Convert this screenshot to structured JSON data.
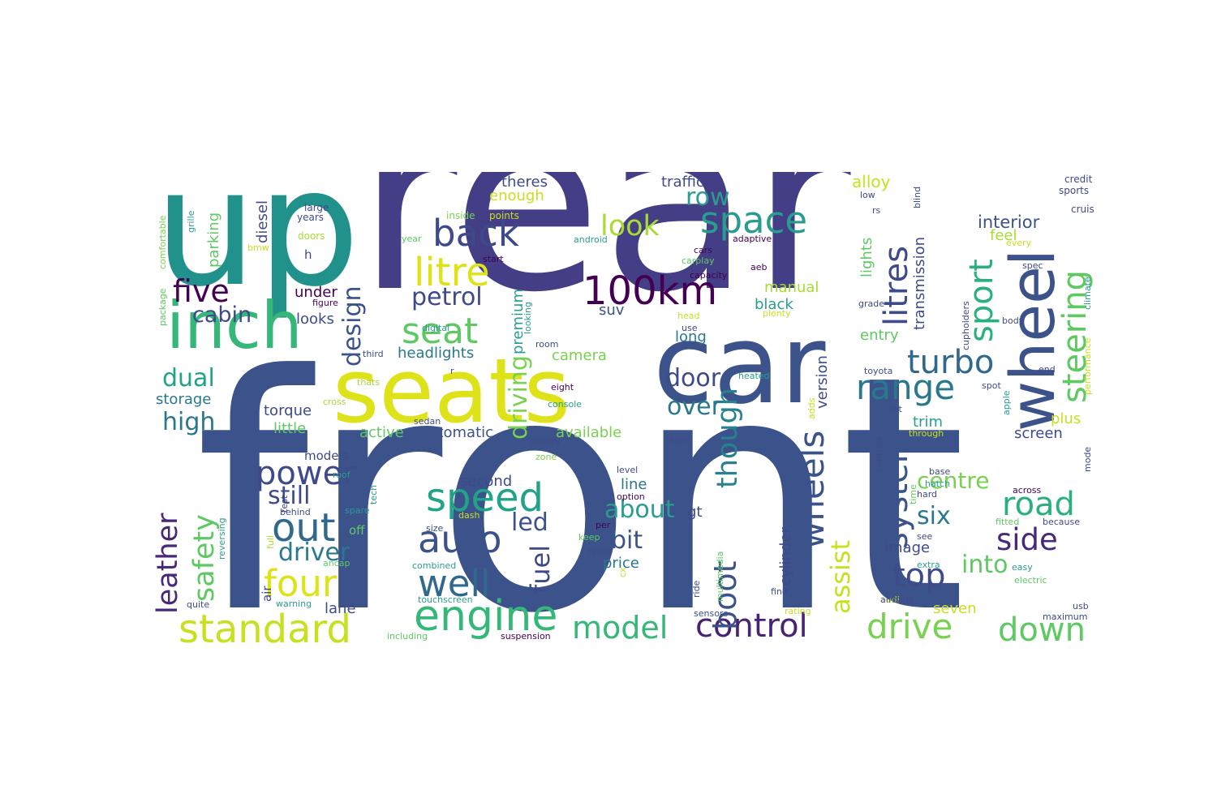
{
  "words": [
    {
      "text": "front",
      "color": "#3b528b"
    },
    {
      "text": "rear",
      "color": "#433e85"
    },
    {
      "text": "up",
      "color": "#21918c"
    },
    {
      "text": "car",
      "color": "#3b528b"
    },
    {
      "text": "seats",
      "color": "#dde318"
    },
    {
      "text": "inch",
      "color": "#35b779"
    },
    {
      "text": "wheel",
      "color": "#3b528b"
    },
    {
      "text": "100km",
      "color": "#440154"
    },
    {
      "text": "engine",
      "color": "#35b779"
    },
    {
      "text": "control",
      "color": "#482374"
    },
    {
      "text": "drive",
      "color": "#7ad151"
    },
    {
      "text": "standard",
      "color": "#c8e020"
    },
    {
      "text": "space",
      "color": "#2a9d8f"
    },
    {
      "text": "back",
      "color": "#3e4a89"
    },
    {
      "text": "seat",
      "color": "#5ec962"
    },
    {
      "text": "litre",
      "color": "#dde318"
    },
    {
      "text": "range",
      "color": "#2a788e"
    },
    {
      "text": "turbo",
      "color": "#30688e"
    },
    {
      "text": "speed",
      "color": "#20a386"
    },
    {
      "text": "auto",
      "color": "#3b528b"
    },
    {
      "text": "well",
      "color": "#31688e"
    },
    {
      "text": "power",
      "color": "#3e4a89"
    },
    {
      "text": "four",
      "color": "#dde318"
    },
    {
      "text": "model",
      "color": "#35b779"
    },
    {
      "text": "road",
      "color": "#2ab07f"
    },
    {
      "text": "down",
      "color": "#5ec962"
    },
    {
      "text": "top",
      "color": "#3e4a89"
    },
    {
      "text": "side",
      "color": "#482878"
    },
    {
      "text": "out",
      "color": "#31688e"
    },
    {
      "text": "five",
      "color": "#440154"
    },
    {
      "text": "litres",
      "color": "#3e4a89"
    },
    {
      "text": "steering",
      "color": "#5ec962"
    },
    {
      "text": "sport",
      "color": "#2ab07f"
    },
    {
      "text": "system",
      "color": "#3b528b"
    },
    {
      "text": "wheels",
      "color": "#3b528b"
    },
    {
      "text": "boot",
      "color": "#3b528b"
    },
    {
      "text": "though",
      "color": "#26828e"
    },
    {
      "text": "leather",
      "color": "#482878"
    },
    {
      "text": "safety",
      "color": "#5ec962"
    },
    {
      "text": "driving",
      "color": "#7ad151"
    },
    {
      "text": "look",
      "color": "#a8db34"
    },
    {
      "text": "petrol",
      "color": "#3e4a89"
    },
    {
      "text": "cabin",
      "color": "#3e4a89"
    },
    {
      "text": "dual",
      "color": "#20a386"
    },
    {
      "text": "high",
      "color": "#2a788e"
    },
    {
      "text": "design",
      "color": "#3b528b"
    },
    {
      "text": "door",
      "color": "#3e4a89"
    },
    {
      "text": "over",
      "color": "#2a788e"
    },
    {
      "text": "row",
      "color": "#2a9d8f"
    },
    {
      "text": "still",
      "color": "#3e4a89"
    },
    {
      "text": "about",
      "color": "#2a9d8f"
    },
    {
      "text": "bit",
      "color": "#3b528b"
    },
    {
      "text": "fuel",
      "color": "#3e4a89"
    },
    {
      "text": "driver",
      "color": "#2a788e"
    },
    {
      "text": "led",
      "color": "#3b528b"
    },
    {
      "text": "six",
      "color": "#2a788e"
    },
    {
      "text": "centre",
      "color": "#7ad151"
    },
    {
      "text": "into",
      "color": "#5ec962"
    },
    {
      "text": "assist",
      "color": "#c8e020"
    },
    {
      "text": "interior",
      "color": "#3b528b"
    },
    {
      "text": "headlights",
      "color": "#2a788e"
    },
    {
      "text": "automatic",
      "color": "#3b528b"
    },
    {
      "text": "available",
      "color": "#7ad151"
    },
    {
      "text": "storage",
      "color": "#2a788e"
    },
    {
      "text": "torque",
      "color": "#3e4a89"
    },
    {
      "text": "little",
      "color": "#5ec962"
    },
    {
      "text": "lane",
      "color": "#3e4a89"
    },
    {
      "text": "price",
      "color": "#2a788e"
    },
    {
      "text": "camera",
      "color": "#7ad151"
    },
    {
      "text": "active",
      "color": "#5ec962"
    },
    {
      "text": "second",
      "color": "#3e4a89"
    },
    {
      "text": "line",
      "color": "#2a788e"
    },
    {
      "text": "cylinder",
      "color": "#3e4a89"
    },
    {
      "text": "manual",
      "color": "#a8db34"
    },
    {
      "text": "black",
      "color": "#2a9d8f"
    },
    {
      "text": "long",
      "color": "#2a788e"
    },
    {
      "text": "suv",
      "color": "#3b528b"
    },
    {
      "text": "version",
      "color": "#3e4a89"
    },
    {
      "text": "trim",
      "color": "#2a9d8f"
    },
    {
      "text": "screen",
      "color": "#3e4a89"
    },
    {
      "text": "plus",
      "color": "#c8e020"
    },
    {
      "text": "entry",
      "color": "#5ec962"
    },
    {
      "text": "lights",
      "color": "#5ec962"
    },
    {
      "text": "transmission",
      "color": "#3e4a89"
    },
    {
      "text": "feel",
      "color": "#a8db34"
    },
    {
      "text": "alloy",
      "color": "#c8e020"
    },
    {
      "text": "traffic",
      "color": "#3e4a89"
    },
    {
      "text": "theres",
      "color": "#3e4a89"
    },
    {
      "text": "enough",
      "color": "#c8e020"
    },
    {
      "text": "parking",
      "color": "#5ec962"
    },
    {
      "text": "diesel",
      "color": "#3e4a89"
    },
    {
      "text": "looks",
      "color": "#3e4a89"
    },
    {
      "text": "under",
      "color": "#440154"
    },
    {
      "text": "premium",
      "color": "#2a9d8f"
    },
    {
      "text": "image",
      "color": "#3e4a89"
    },
    {
      "text": "seven",
      "color": "#c8e020"
    },
    {
      "text": "gt",
      "color": "#3e4a89"
    },
    {
      "text": "models",
      "color": "#3e4a89"
    },
    {
      "text": "off",
      "color": "#5ec962"
    },
    {
      "text": "air",
      "color": "#3e4a89"
    },
    {
      "text": "h",
      "color": "#3e4a89"
    },
    {
      "text": "credit",
      "color": "#3e4a89"
    },
    {
      "text": "sports",
      "color": "#3e4a89"
    },
    {
      "text": "cruise",
      "color": "#3e4a89"
    },
    {
      "text": "comfortable",
      "color": "#7ad151"
    },
    {
      "text": "grille",
      "color": "#2a9d8f"
    },
    {
      "text": "large",
      "color": "#3e4a89"
    },
    {
      "text": "years",
      "color": "#3e4a89"
    },
    {
      "text": "doors",
      "color": "#a8db34"
    },
    {
      "text": "bmw",
      "color": "#c8e020"
    },
    {
      "text": "inside",
      "color": "#7ad151"
    },
    {
      "text": "points",
      "color": "#c8e020"
    },
    {
      "text": "year",
      "color": "#5ec962"
    },
    {
      "text": "android",
      "color": "#2a9d8f"
    },
    {
      "text": "start",
      "color": "#440154"
    },
    {
      "text": "figure",
      "color": "#440154"
    },
    {
      "text": "digital",
      "color": "#2a9d8f"
    },
    {
      "text": "package",
      "color": "#5ec962"
    },
    {
      "text": "third",
      "color": "#3e4a89"
    },
    {
      "text": "looking",
      "color": "#2a9d8f"
    },
    {
      "text": "room",
      "color": "#3e4a89"
    },
    {
      "text": "thats",
      "color": "#a8db34"
    },
    {
      "text": "r",
      "color": "#3e4a89"
    },
    {
      "text": "cross",
      "color": "#a8db34"
    },
    {
      "text": "sedan",
      "color": "#3e4a89"
    },
    {
      "text": "eight",
      "color": "#440154"
    },
    {
      "text": "console",
      "color": "#2a9d8f"
    },
    {
      "text": "display",
      "color": "#3e4a89"
    },
    {
      "text": "zone",
      "color": "#7ad151"
    },
    {
      "text": "roof",
      "color": "#2a9d8f"
    },
    {
      "text": "test",
      "color": "#3e4a89"
    },
    {
      "text": "tech",
      "color": "#2a9d8f"
    },
    {
      "text": "behind",
      "color": "#3e4a89"
    },
    {
      "text": "spare",
      "color": "#2a9d8f"
    },
    {
      "text": "reversing",
      "color": "#2a9d8f"
    },
    {
      "text": "full",
      "color": "#a8db34"
    },
    {
      "text": "ancap",
      "color": "#5ec962"
    },
    {
      "text": "quite",
      "color": "#3e4a89"
    },
    {
      "text": "warning",
      "color": "#2a9d8f"
    },
    {
      "text": "including",
      "color": "#5ec962"
    },
    {
      "text": "touchscreen",
      "color": "#2a9d8f"
    },
    {
      "text": "combined",
      "color": "#2a9d8f"
    },
    {
      "text": "size",
      "color": "#3e4a89"
    },
    {
      "text": "dash",
      "color": "#c8e020"
    },
    {
      "text": "suspension",
      "color": "#440154"
    },
    {
      "text": "cx",
      "color": "#c8e020"
    },
    {
      "text": "keep",
      "color": "#5ec962"
    },
    {
      "text": "per",
      "color": "#440154"
    },
    {
      "text": "feels",
      "color": "#3e4a89"
    },
    {
      "text": "option",
      "color": "#440154"
    },
    {
      "text": "level",
      "color": "#3e4a89"
    },
    {
      "text": "multimedia",
      "color": "#5ec962"
    },
    {
      "text": "ride",
      "color": "#3e4a89"
    },
    {
      "text": "sensors",
      "color": "#3e4a89"
    },
    {
      "text": "alert",
      "color": "#3e4a89"
    },
    {
      "text": "head",
      "color": "#c8e020"
    },
    {
      "text": "use",
      "color": "#3e4a89"
    },
    {
      "text": "cars",
      "color": "#440154"
    },
    {
      "text": "carplay",
      "color": "#5ec962"
    },
    {
      "text": "capacity",
      "color": "#440154"
    },
    {
      "text": "adaptive",
      "color": "#440154"
    },
    {
      "text": "aeb",
      "color": "#440154"
    },
    {
      "text": "plenty",
      "color": "#c8e020"
    },
    {
      "text": "heated",
      "color": "#2a9d8f"
    },
    {
      "text": "find",
      "color": "#3e4a89"
    },
    {
      "text": "rating",
      "color": "#c8e020"
    },
    {
      "text": "low",
      "color": "#3e4a89"
    },
    {
      "text": "rs",
      "color": "#3e4a89"
    },
    {
      "text": "blind",
      "color": "#3e4a89"
    },
    {
      "text": "grade",
      "color": "#3e4a89"
    },
    {
      "text": "toyota",
      "color": "#3e4a89"
    },
    {
      "text": "adds",
      "color": "#c8e020"
    },
    {
      "text": "controls",
      "color": "#3e4a89"
    },
    {
      "text": "set",
      "color": "#3e4a89"
    },
    {
      "text": "through",
      "color": "#c8e020"
    },
    {
      "text": "audi",
      "color": "#c8e020"
    },
    {
      "text": "airbags",
      "color": "#3e4a89"
    },
    {
      "text": "spot",
      "color": "#3e4a89"
    },
    {
      "text": "cupholders",
      "color": "#3e4a89"
    },
    {
      "text": "body",
      "color": "#3e4a89"
    },
    {
      "text": "apple",
      "color": "#2a9d8f"
    },
    {
      "text": "every",
      "color": "#c8e020"
    },
    {
      "text": "spec",
      "color": "#3e4a89"
    },
    {
      "text": "end",
      "color": "#3e4a89"
    },
    {
      "text": "climate",
      "color": "#2a9d8f"
    },
    {
      "text": "performance",
      "color": "#c8e020"
    },
    {
      "text": "mode",
      "color": "#3e4a89"
    },
    {
      "text": "base",
      "color": "#3e4a89"
    },
    {
      "text": "hatch",
      "color": "#2a9d8f"
    },
    {
      "text": "hard",
      "color": "#3e4a89"
    },
    {
      "text": "time",
      "color": "#5ec962"
    },
    {
      "text": "across",
      "color": "#440154"
    },
    {
      "text": "fitted",
      "color": "#5ec962"
    },
    {
      "text": "because",
      "color": "#3e4a89"
    },
    {
      "text": "see",
      "color": "#3e4a89"
    },
    {
      "text": "extra",
      "color": "#2a9d8f"
    },
    {
      "text": "easy",
      "color": "#2a9d8f"
    },
    {
      "text": "electric",
      "color": "#5ec962"
    },
    {
      "text": "usb",
      "color": "#3e4a89"
    },
    {
      "text": "maximum",
      "color": "#3e4a89"
    }
  ]
}
